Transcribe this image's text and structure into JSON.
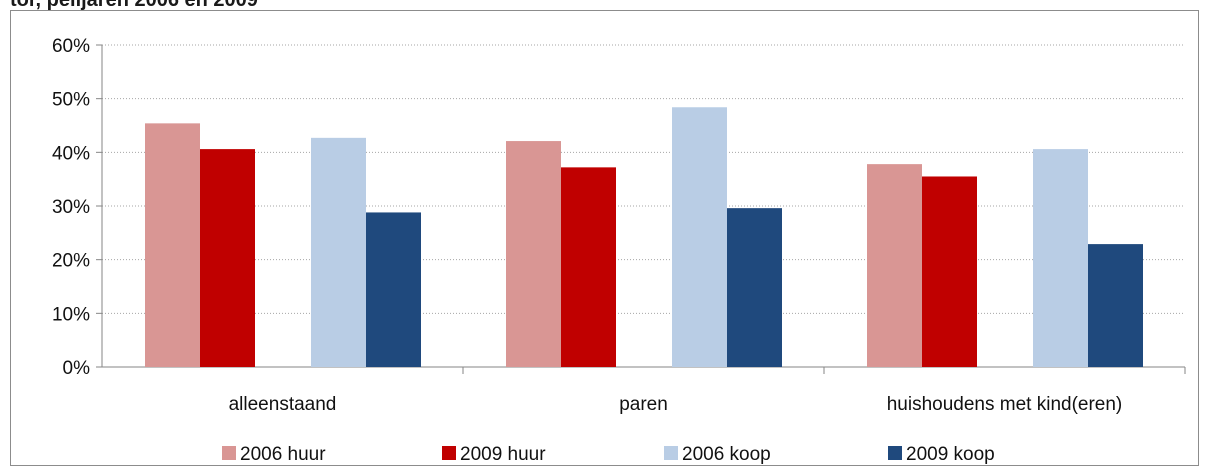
{
  "header": {
    "title_fragment": "tor, peiljaren 2006 en 2009"
  },
  "chart_data": {
    "type": "bar",
    "categories": [
      "alleenstaand",
      "paren",
      "huishoudens met kind(eren)"
    ],
    "series": [
      {
        "name": "2006 huur",
        "color": "#d99694",
        "values": [
          45.4,
          42.1,
          37.8
        ]
      },
      {
        "name": "2009 huur",
        "color": "#c00000",
        "values": [
          40.6,
          37.2,
          35.5
        ]
      },
      {
        "name": "2006 koop",
        "color": "#b9cde5",
        "values": [
          42.7,
          48.4,
          40.6
        ]
      },
      {
        "name": "2009 koop",
        "color": "#1f497d",
        "values": [
          28.8,
          29.6,
          22.9
        ]
      }
    ],
    "yticks": [
      "0%",
      "10%",
      "20%",
      "30%",
      "40%",
      "50%",
      "60%"
    ],
    "ylim": [
      0,
      60
    ],
    "grid": true,
    "legend_position": "bottom"
  }
}
